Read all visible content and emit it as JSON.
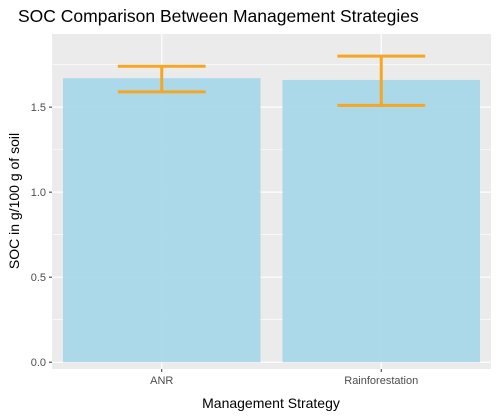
{
  "chart_data": {
    "type": "bar",
    "title": "SOC Comparison Between Management Strategies",
    "xlabel": "Management Strategy",
    "ylabel": "SOC in g/100 g of soil",
    "categories": [
      "ANR",
      "Rainforestation"
    ],
    "values": [
      1.67,
      1.66
    ],
    "error_bars": [
      {
        "low": 1.59,
        "high": 1.74
      },
      {
        "low": 1.51,
        "high": 1.8
      }
    ],
    "ylim": [
      -0.04,
      1.93
    ],
    "yticks": [
      0.0,
      0.5,
      1.0,
      1.5
    ],
    "ytick_labels": [
      "0.0",
      "0.5",
      "1.0",
      "1.5"
    ],
    "grid": true,
    "colors": {
      "bar_fill": "#a8d8ea",
      "error_bar": "#f5a623",
      "panel_bg": "#ebebeb",
      "grid": "#ffffff"
    }
  }
}
